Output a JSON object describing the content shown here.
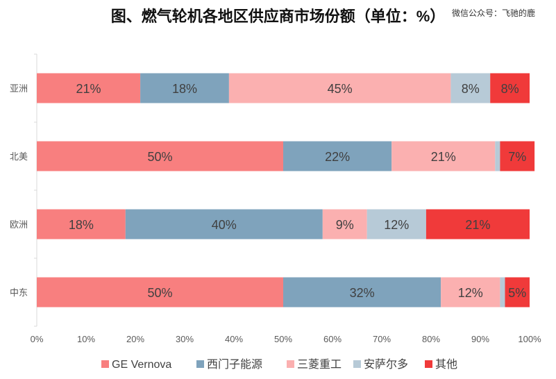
{
  "title": "图、燃气轮机各地区供应商市场份额（单位：%）",
  "watermark": "微信公众号：飞驰的鹿",
  "chart_data": {
    "type": "bar",
    "orientation": "horizontal",
    "stacked": "percent",
    "categories": [
      "亚洲",
      "北美",
      "欧洲",
      "中东"
    ],
    "series": [
      {
        "name": "GE Vernova",
        "color": "#f87f7f",
        "values": [
          21,
          50,
          18,
          50
        ]
      },
      {
        "name": "西门子能源",
        "color": "#7fa3bc",
        "values": [
          18,
          22,
          40,
          32
        ]
      },
      {
        "name": "三菱重工",
        "color": "#fbb0b0",
        "values": [
          45,
          21,
          9,
          12
        ]
      },
      {
        "name": "安萨尔多",
        "color": "#b7cad7",
        "values": [
          8,
          1,
          12,
          1
        ]
      },
      {
        "name": "其他",
        "color": "#f03a3a",
        "values": [
          8,
          7,
          21,
          5
        ]
      }
    ],
    "data_labels": [
      [
        "21%",
        "18%",
        "45%",
        "8%",
        "8%"
      ],
      [
        "50%",
        "22%",
        "21%",
        "",
        "7%"
      ],
      [
        "18%",
        "40%",
        "9%",
        "12%",
        "21%"
      ],
      [
        "50%",
        "32%",
        "12%",
        "",
        "5%"
      ]
    ],
    "xlim": [
      0,
      100
    ],
    "xticks": [
      "0%",
      "10%",
      "20%",
      "30%",
      "40%",
      "50%",
      "60%",
      "70%",
      "80%",
      "90%",
      "100%"
    ],
    "grid": false,
    "legend_position": "bottom"
  }
}
